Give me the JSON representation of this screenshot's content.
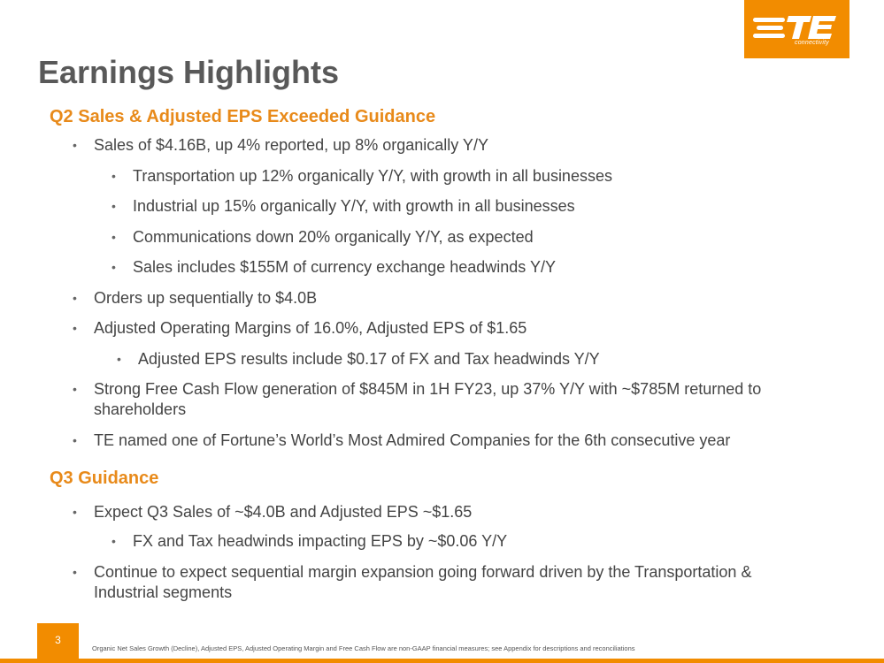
{
  "logo": {
    "text": "TE",
    "sub": "connectivity"
  },
  "title": "Earnings Highlights",
  "sections": [
    {
      "heading": "Q2 Sales & Adjusted EPS Exceeded Guidance",
      "bullets": [
        "Sales of $4.16B, up 4% reported, up 8% organically Y/Y",
        "Transportation up 12% organically Y/Y, with growth in all businesses",
        "Industrial up 15% organically Y/Y, with growth in all businesses",
        "Communications down 20% organically Y/Y, as expected",
        "Sales includes $155M of currency exchange headwinds Y/Y",
        "Orders up sequentially to $4.0B",
        "Adjusted Operating Margins of 16.0%, Adjusted EPS of $1.65",
        "Adjusted EPS results include $0.17 of FX and Tax headwinds Y/Y",
        "Strong Free Cash Flow generation of $845M in 1H FY23, up 37% Y/Y with ~$785M returned to",
        "shareholders",
        "TE named one of Fortune’s World’s Most Admired Companies for the 6th consecutive year"
      ]
    },
    {
      "heading": "Q3 Guidance",
      "bullets": [
        "Expect Q3 Sales of ~$4.0B and Adjusted EPS ~$1.65",
        "FX and Tax headwinds impacting EPS by ~$0.06 Y/Y",
        "Continue to expect sequential margin expansion going forward driven by the Transportation &",
        "Industrial segments"
      ]
    }
  ],
  "bullet_char": "•",
  "footer": {
    "page_number": "3",
    "note": "Organic Net Sales Growth (Decline), Adjusted EPS, Adjusted Operating Margin and Free Cash Flow are non-GAAP financial measures; see Appendix for descriptions and reconciliations"
  },
  "colors": {
    "accent": "#f28c00",
    "heading": "#e88a1a",
    "title": "#595959",
    "body": "#444444"
  }
}
